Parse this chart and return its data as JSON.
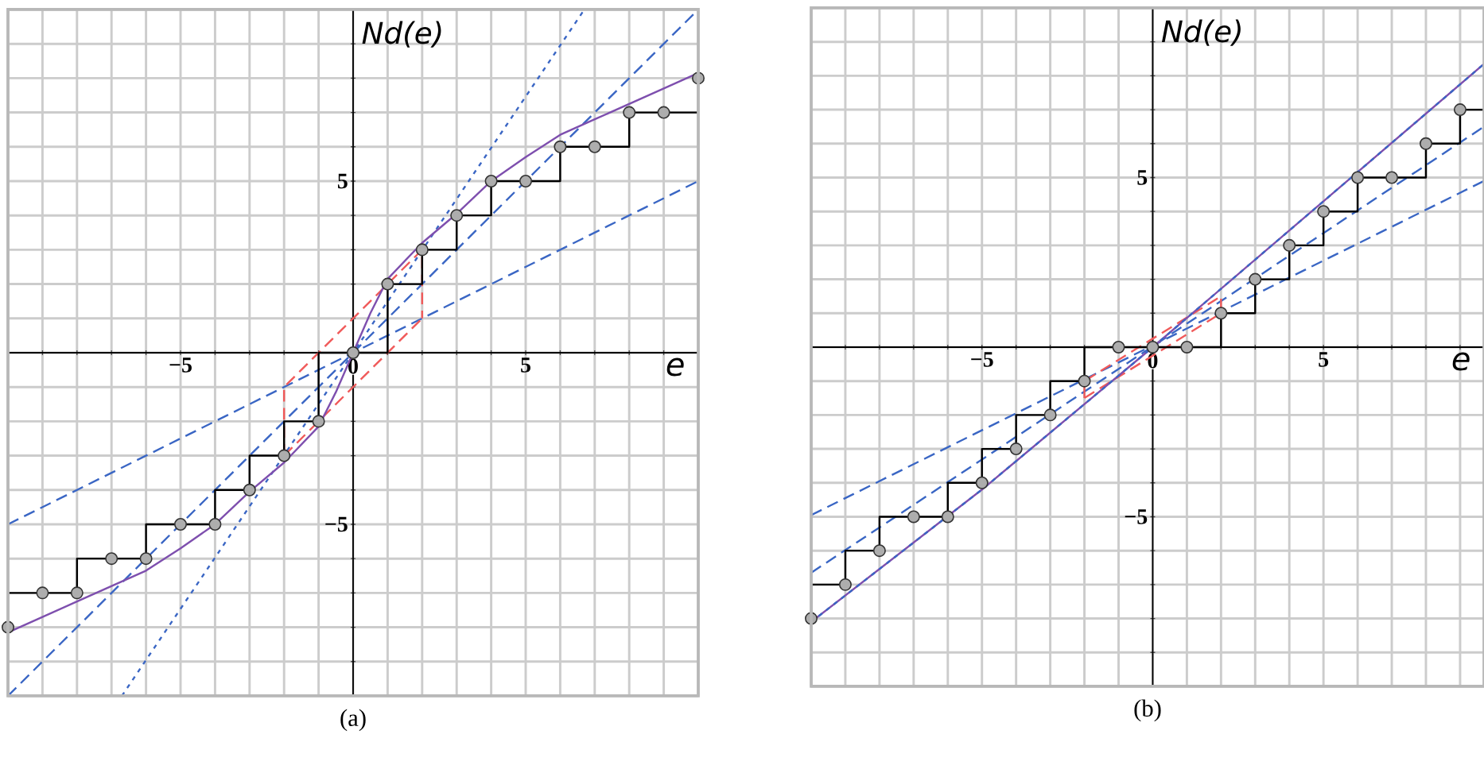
{
  "chart_data": [
    {
      "type": "line",
      "title": "(a)",
      "xlabel": "e",
      "ylabel": "Nd(e)",
      "xlim": [
        -10,
        10
      ],
      "ylim": [
        -10,
        10
      ],
      "grid": true,
      "xticks": [
        {
          "value": -10,
          "label": null
        },
        {
          "value": -9,
          "label": null
        },
        {
          "value": -8,
          "label": null
        },
        {
          "value": -7,
          "label": null
        },
        {
          "value": -6,
          "label": null
        },
        {
          "value": -5,
          "label": "−5"
        },
        {
          "value": -4,
          "label": null
        },
        {
          "value": -3,
          "label": null
        },
        {
          "value": -2,
          "label": null
        },
        {
          "value": -1,
          "label": null
        },
        {
          "value": 0,
          "label": "0"
        },
        {
          "value": 1,
          "label": null
        },
        {
          "value": 2,
          "label": null
        },
        {
          "value": 3,
          "label": null
        },
        {
          "value": 4,
          "label": null
        },
        {
          "value": 5,
          "label": "5"
        },
        {
          "value": 6,
          "label": null
        },
        {
          "value": 7,
          "label": null
        },
        {
          "value": 8,
          "label": null
        },
        {
          "value": 9,
          "label": null
        },
        {
          "value": 10,
          "label": null
        }
      ],
      "yticks": [
        {
          "value": -10,
          "label": null
        },
        {
          "value": -9,
          "label": null
        },
        {
          "value": -8,
          "label": null
        },
        {
          "value": -7,
          "label": null
        },
        {
          "value": -6,
          "label": null
        },
        {
          "value": -5,
          "label": "−5"
        },
        {
          "value": -4,
          "label": null
        },
        {
          "value": -3,
          "label": null
        },
        {
          "value": -2,
          "label": null
        },
        {
          "value": -1,
          "label": null
        },
        {
          "value": 0,
          "label": null
        },
        {
          "value": 1,
          "label": null
        },
        {
          "value": 2,
          "label": null
        },
        {
          "value": 3,
          "label": null
        },
        {
          "value": 4,
          "label": null
        },
        {
          "value": 5,
          "label": "5"
        },
        {
          "value": 6,
          "label": null
        },
        {
          "value": 7,
          "label": null
        },
        {
          "value": 8,
          "label": null
        },
        {
          "value": 9,
          "label": null
        },
        {
          "value": 10,
          "label": null
        }
      ],
      "series": [
        {
          "color": "#3a66c4",
          "line_style": "dashed",
          "x": [
            -10,
            10
          ],
          "values": [
            -5,
            5
          ]
        },
        {
          "color": "#3a66c4",
          "line_style": "dotted",
          "x": [
            -6.7,
            6.7
          ],
          "values": [
            -10,
            10
          ]
        },
        {
          "color": "#3a66c4",
          "line_style": "dashed",
          "x": [
            -10,
            10
          ],
          "values": [
            -10,
            10
          ]
        },
        {
          "color": "#f05a5a",
          "line_style": "dashed",
          "x": [
            -2,
            -2,
            2,
            2
          ],
          "values": [
            -3,
            -1,
            3,
            1
          ]
        },
        {
          "color": "#f05a5a",
          "line_style": "dashed",
          "x": [
            -2,
            2
          ],
          "values": [
            -3,
            1
          ]
        },
        {
          "color": "#7e4fae",
          "line_style": "solid",
          "x": [
            -10,
            -9,
            -8,
            -7,
            -6,
            -5,
            -4,
            -3,
            -2,
            -1,
            -0.5,
            0,
            0.5,
            1,
            2,
            3,
            4,
            5,
            6,
            7,
            8,
            9,
            10
          ],
          "values": [
            -8.15,
            -7.7,
            -7.25,
            -6.8,
            -6.35,
            -5.7,
            -5,
            -4.05,
            -3.2,
            -2.15,
            -1.15,
            0,
            1.15,
            2.15,
            3.2,
            4.05,
            5,
            5.7,
            6.35,
            6.8,
            7.25,
            7.7,
            8.15
          ]
        },
        {
          "color": "#000000",
          "line_style": "solid",
          "x": [
            -10,
            -10,
            -8,
            -8,
            -6,
            -6,
            -4,
            -4,
            -3,
            -3,
            -2,
            -2,
            -1,
            -1,
            1,
            1,
            2,
            2,
            3,
            3,
            4,
            4,
            6,
            6,
            8,
            8,
            10,
            10
          ],
          "values": [
            -8,
            -7,
            -7,
            -6,
            -6,
            -5,
            -5,
            -4,
            -4,
            -3,
            -3,
            -2,
            -2,
            0,
            0,
            2,
            2,
            3,
            3,
            4,
            4,
            5,
            5,
            6,
            6,
            7,
            7,
            8
          ]
        },
        {
          "type": "scatter",
          "color": "#333333",
          "marker": "circle",
          "x": [
            -10,
            -9,
            -8,
            -7,
            -6,
            -5,
            -4,
            -3,
            -2,
            -1,
            0,
            1,
            2,
            3,
            4,
            5,
            6,
            7,
            8,
            9,
            10
          ],
          "values": [
            -8,
            -7,
            -7,
            -6,
            -6,
            -5,
            -5,
            -4,
            -3,
            -2,
            0,
            2,
            3,
            4,
            5,
            5,
            6,
            6,
            7,
            7,
            8
          ]
        }
      ]
    },
    {
      "type": "line",
      "title": "(b)",
      "xlabel": "e",
      "ylabel": "Nd(e)",
      "xlim": [
        -10,
        9.7
      ],
      "ylim": [
        -10,
        10
      ],
      "grid": true,
      "xticks": [
        {
          "value": -10,
          "label": null
        },
        {
          "value": -9,
          "label": null
        },
        {
          "value": -8,
          "label": null
        },
        {
          "value": -7,
          "label": null
        },
        {
          "value": -6,
          "label": null
        },
        {
          "value": -5,
          "label": "−5"
        },
        {
          "value": -4,
          "label": null
        },
        {
          "value": -3,
          "label": null
        },
        {
          "value": -2,
          "label": null
        },
        {
          "value": -1,
          "label": null
        },
        {
          "value": 0,
          "label": "0"
        },
        {
          "value": 1,
          "label": null
        },
        {
          "value": 2,
          "label": null
        },
        {
          "value": 3,
          "label": null
        },
        {
          "value": 4,
          "label": null
        },
        {
          "value": 5,
          "label": "5"
        },
        {
          "value": 6,
          "label": null
        },
        {
          "value": 7,
          "label": null
        },
        {
          "value": 8,
          "label": null
        },
        {
          "value": 9,
          "label": null
        }
      ],
      "yticks": [
        {
          "value": -10,
          "label": null
        },
        {
          "value": -9,
          "label": null
        },
        {
          "value": -8,
          "label": null
        },
        {
          "value": -7,
          "label": null
        },
        {
          "value": -6,
          "label": null
        },
        {
          "value": -5,
          "label": "−5"
        },
        {
          "value": -4,
          "label": null
        },
        {
          "value": -3,
          "label": null
        },
        {
          "value": -2,
          "label": null
        },
        {
          "value": -1,
          "label": null
        },
        {
          "value": 0,
          "label": null
        },
        {
          "value": 1,
          "label": null
        },
        {
          "value": 2,
          "label": null
        },
        {
          "value": 3,
          "label": null
        },
        {
          "value": 4,
          "label": null
        },
        {
          "value": 5,
          "label": "5"
        },
        {
          "value": 6,
          "label": null
        },
        {
          "value": 7,
          "label": null
        },
        {
          "value": 8,
          "label": null
        },
        {
          "value": 9,
          "label": null
        },
        {
          "value": 10,
          "label": null
        }
      ],
      "series": [
        {
          "color": "#3a66c4",
          "line_style": "dashed",
          "x": [
            -10,
            9.7
          ],
          "values": [
            -4.95,
            4.9
          ]
        },
        {
          "color": "#3a66c4",
          "line_style": "dashed",
          "x": [
            -10,
            9.7
          ],
          "values": [
            -6.65,
            6.5
          ]
        },
        {
          "color": "#f05a5a",
          "line_style": "dashed",
          "x": [
            -2,
            -2,
            2,
            2
          ],
          "values": [
            -1.5,
            -1,
            1.5,
            1
          ]
        },
        {
          "color": "#f05a5a",
          "line_style": "dashed",
          "x": [
            -2,
            2
          ],
          "values": [
            -1.5,
            1
          ]
        },
        {
          "color": "#7e4fae",
          "line_style": "solid",
          "x": [
            -10,
            -5,
            0,
            5,
            9.7
          ],
          "values": [
            -8.1,
            -4.2,
            0,
            4.3,
            8.35
          ]
        },
        {
          "color": "#3a66c4",
          "line_style": "dotted",
          "x": [
            -10,
            -5,
            0,
            5,
            9.7
          ],
          "values": [
            -8.1,
            -4.2,
            0,
            4.3,
            8.35
          ]
        },
        {
          "color": "#000000",
          "line_style": "solid",
          "x": [
            -10,
            -10,
            -9,
            -9,
            -8,
            -8,
            -6,
            -6,
            -5,
            -5,
            -4,
            -4,
            -3,
            -3,
            -2,
            -2,
            2,
            2,
            3,
            3,
            4,
            4,
            5,
            5,
            6,
            6,
            8,
            8,
            9,
            9,
            9.7
          ],
          "values": [
            -8,
            -7,
            -7,
            -6,
            -6,
            -5,
            -5,
            -4,
            -4,
            -3,
            -3,
            -2,
            -2,
            -1,
            -1,
            0,
            0,
            1,
            1,
            2,
            2,
            3,
            3,
            4,
            4,
            5,
            5,
            6,
            6,
            7,
            7
          ]
        },
        {
          "type": "scatter",
          "color": "#333333",
          "marker": "circle",
          "x": [
            -10,
            -9,
            -8,
            -7,
            -6,
            -5,
            -4,
            -3,
            -2,
            -1,
            0,
            1,
            2,
            3,
            4,
            5,
            6,
            7,
            8,
            9
          ],
          "values": [
            -8,
            -7,
            -6,
            -5,
            -5,
            -4,
            -3,
            -2,
            -1,
            0,
            0,
            0,
            1,
            2,
            3,
            4,
            5,
            5,
            6,
            7
          ]
        }
      ]
    }
  ]
}
